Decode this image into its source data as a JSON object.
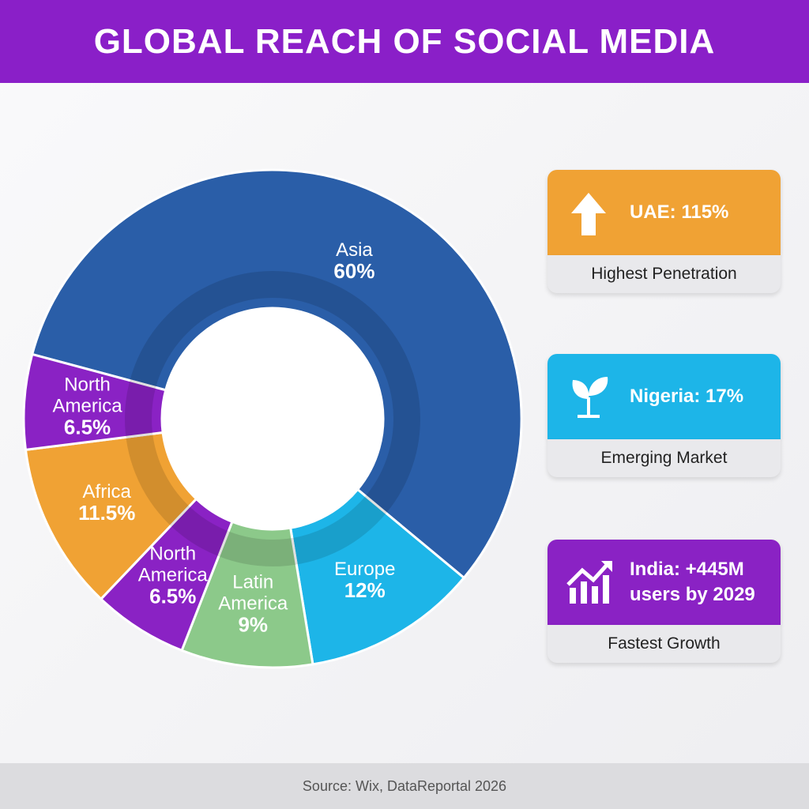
{
  "chart_data": {
    "type": "donut",
    "title": "GLOBAL REACH OF SOCIAL MEDIA",
    "categories": [
      "Asia",
      "Europe",
      "Latin America",
      "North America",
      "Africa",
      "North America"
    ],
    "values": [
      60,
      12,
      9,
      6.5,
      11.5,
      6.5
    ],
    "value_labels": [
      "60%",
      "12%",
      "9%",
      "6.5%",
      "11.5%",
      "6.5%"
    ],
    "colors": [
      "#2a5ea8",
      "#1db5e8",
      "#8cc98a",
      "#8a22c4",
      "#f0a234",
      "#8a22c4"
    ]
  },
  "cards": [
    {
      "headline": [
        "UAE: 115%"
      ],
      "caption": "Highest Penetration",
      "color": "#f0a234"
    },
    {
      "headline": [
        "Nigeria: 17%"
      ],
      "caption": "Emerging Market",
      "color": "#1db5e8"
    },
    {
      "headline": [
        "India: +445M",
        "users by 2029"
      ],
      "caption": "Fastest Growth",
      "color": "#8a22c4"
    }
  ],
  "footer": {
    "source": "Source: Wix, DataReportal 2026"
  }
}
